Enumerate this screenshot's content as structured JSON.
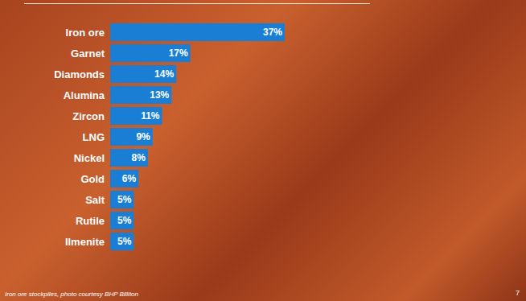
{
  "chart_data": {
    "type": "bar",
    "orientation": "horizontal",
    "categories": [
      "Iron ore",
      "Garnet",
      "Diamonds",
      "Alumina",
      "Zircon",
      "LNG",
      "Nickel",
      "Gold",
      "Salt",
      "Rutile",
      "Ilmenite"
    ],
    "values": [
      37,
      17,
      14,
      13,
      11,
      9,
      8,
      6,
      5,
      5,
      5
    ],
    "value_labels": [
      "37%",
      "17%",
      "14%",
      "13%",
      "11%",
      "9%",
      "8%",
      "6%",
      "5%",
      "5%",
      "5%"
    ],
    "color": "#1a7fd4",
    "data_labels": true,
    "tick_labels": "y",
    "grid": false,
    "annotations": [
      "Iron ore stockpiles, photo courtesy BHP Billiton",
      "7"
    ]
  }
}
